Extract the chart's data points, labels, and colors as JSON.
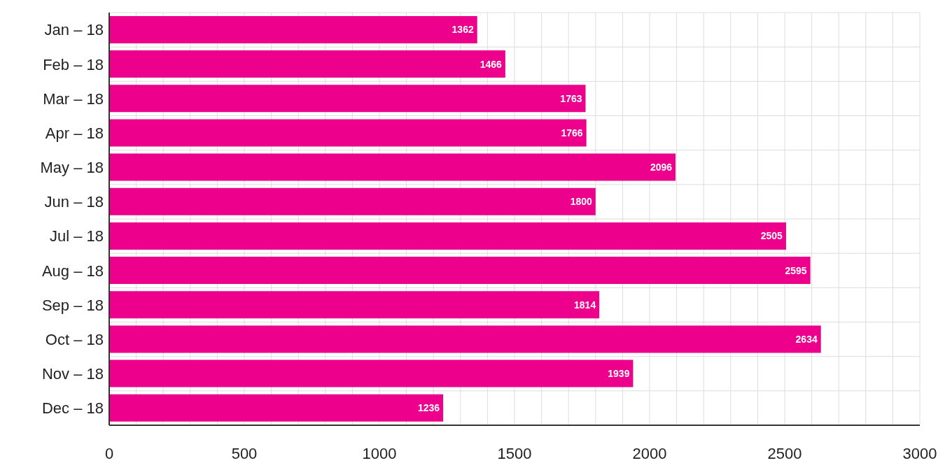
{
  "chart_data": {
    "type": "bar",
    "orientation": "horizontal",
    "categories": [
      "Jan – 18",
      "Feb – 18",
      "Mar – 18",
      "Apr – 18",
      "May – 18",
      "Jun – 18",
      "Jul – 18",
      "Aug – 18",
      "Sep – 18",
      "Oct – 18",
      "Nov – 18",
      "Dec – 18"
    ],
    "values": [
      1362,
      1466,
      1763,
      1766,
      2096,
      1800,
      2505,
      2595,
      1814,
      2634,
      1939,
      1236
    ],
    "color": "#ec008c",
    "xlim": [
      0,
      3000
    ],
    "xticks": [
      0,
      {
        "value": 100,
        "label": null
      },
      {
        "value": 200,
        "label": null
      },
      {
        "value": 300,
        "label": null
      },
      {
        "value": 400,
        "label": null
      },
      500,
      {
        "value": 600,
        "label": null
      },
      {
        "value": 700,
        "label": null
      },
      {
        "value": 800,
        "label": null
      },
      {
        "value": 900,
        "label": null
      },
      1000,
      {
        "value": 1100,
        "label": null
      },
      {
        "value": 1200,
        "label": null
      },
      {
        "value": 1300,
        "label": null
      },
      {
        "value": 1400,
        "label": null
      },
      1500,
      {
        "value": 1600,
        "label": null
      },
      {
        "value": 1700,
        "label": null
      },
      {
        "value": 1800,
        "label": null
      },
      {
        "value": 1900,
        "label": null
      },
      2000,
      {
        "value": 2100,
        "label": null
      },
      {
        "value": 2200,
        "label": null
      },
      {
        "value": 2300,
        "label": null
      },
      {
        "value": 2400,
        "label": null
      },
      2500,
      {
        "value": 2600,
        "label": null
      },
      {
        "value": 2700,
        "label": null
      },
      {
        "value": 2800,
        "label": null
      },
      {
        "value": 2900,
        "label": null
      },
      3000
    ],
    "grid": true,
    "data_labels": true
  }
}
